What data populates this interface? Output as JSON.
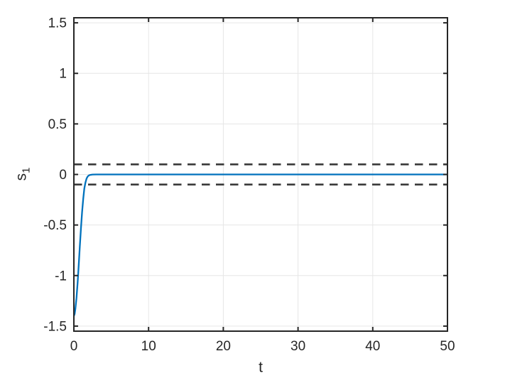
{
  "figure": {
    "background": "#ffffff"
  },
  "chart_data": {
    "type": "line",
    "title": "",
    "xlabel": "t",
    "ylabel_base": "s",
    "ylabel_sub": "1",
    "xlim": [
      0,
      50
    ],
    "ylim": [
      -1.55,
      1.55
    ],
    "grid": true,
    "legend": null,
    "axis_color": "#262626",
    "grid_color": "#e6e6e6",
    "tick_label_color": "#262626",
    "tick_font_size": 19,
    "x_ticks": [
      {
        "v": 0,
        "label": "0"
      },
      {
        "v": 10,
        "label": "10"
      },
      {
        "v": 20,
        "label": "20"
      },
      {
        "v": 30,
        "label": "30"
      },
      {
        "v": 40,
        "label": "40"
      },
      {
        "v": 50,
        "label": "50"
      }
    ],
    "y_ticks": [
      {
        "v": -1.5,
        "label": "-1.5"
      },
      {
        "v": -1,
        "label": "-1"
      },
      {
        "v": -0.5,
        "label": "-0.5"
      },
      {
        "v": 0,
        "label": "0"
      },
      {
        "v": 0.5,
        "label": "0.5"
      },
      {
        "v": 1,
        "label": "1"
      },
      {
        "v": 1.5,
        "label": "1.5"
      }
    ],
    "series": [
      {
        "name": "upper-boundary",
        "color": "#3a3a3a",
        "style": "dashed",
        "width": 2.6,
        "x": [
          0,
          50
        ],
        "y": [
          0.1,
          0.1
        ]
      },
      {
        "name": "lower-boundary",
        "color": "#3a3a3a",
        "style": "dashed",
        "width": 2.6,
        "x": [
          0,
          50
        ],
        "y": [
          -0.1,
          -0.1
        ]
      },
      {
        "name": "s1-trajectory",
        "color": "#0072BD",
        "style": "solid",
        "width": 2.3,
        "x": [
          0,
          0.1,
          0.2,
          0.35,
          0.5,
          0.65,
          0.8,
          0.95,
          1.1,
          1.25,
          1.4,
          1.55,
          1.7,
          1.85,
          2.0,
          2.2,
          2.5,
          3.0,
          4.0,
          6.0,
          10,
          15,
          20,
          25,
          30,
          35,
          40,
          45,
          50
        ],
        "y": [
          -1.4,
          -1.38,
          -1.33,
          -1.22,
          -1.07,
          -0.9,
          -0.71,
          -0.53,
          -0.37,
          -0.24,
          -0.14,
          -0.08,
          -0.04,
          -0.02,
          -0.01,
          -0.004,
          -0.001,
          0,
          0,
          0,
          0,
          0,
          0,
          0,
          0,
          0,
          0,
          0,
          0
        ]
      }
    ]
  }
}
